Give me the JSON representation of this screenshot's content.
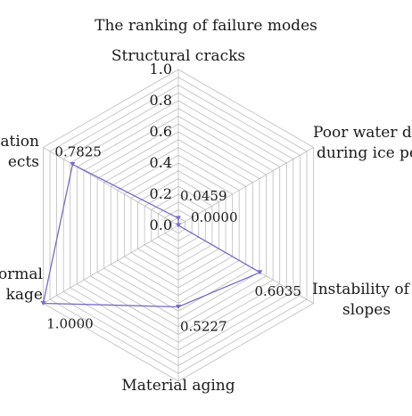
{
  "chart_data": {
    "type": "radar",
    "title": "The ranking of failure modes",
    "axes": [
      {
        "label_lines": [
          "Structural cracks"
        ]
      },
      {
        "label_lines": [
          "Poor water de",
          "during ice pe"
        ]
      },
      {
        "label_lines": [
          "Instability of d",
          "slopes"
        ]
      },
      {
        "label_lines": [
          "Material aging"
        ]
      },
      {
        "label_lines": [
          "ormal",
          "kage"
        ]
      },
      {
        "label_lines": [
          "dation",
          "ects"
        ]
      }
    ],
    "rlim": [
      0.0,
      1.0
    ],
    "ticks": [
      0.0,
      0.2,
      0.4,
      0.6,
      0.8,
      1.0
    ],
    "tick_labels": [
      "0.0",
      "0.2",
      "0.4",
      "0.6",
      "0.8",
      "1.0"
    ],
    "grid_rings": 20,
    "grid": true,
    "series": [
      {
        "values": [
          0.0459,
          0.0,
          0.6035,
          0.5227,
          1.0,
          0.7825
        ],
        "value_labels": [
          "0.0459",
          "0.0000",
          "0.6035",
          "0.5227",
          "1.0000",
          "0.7825"
        ],
        "color": "#7b68c8"
      }
    ]
  }
}
